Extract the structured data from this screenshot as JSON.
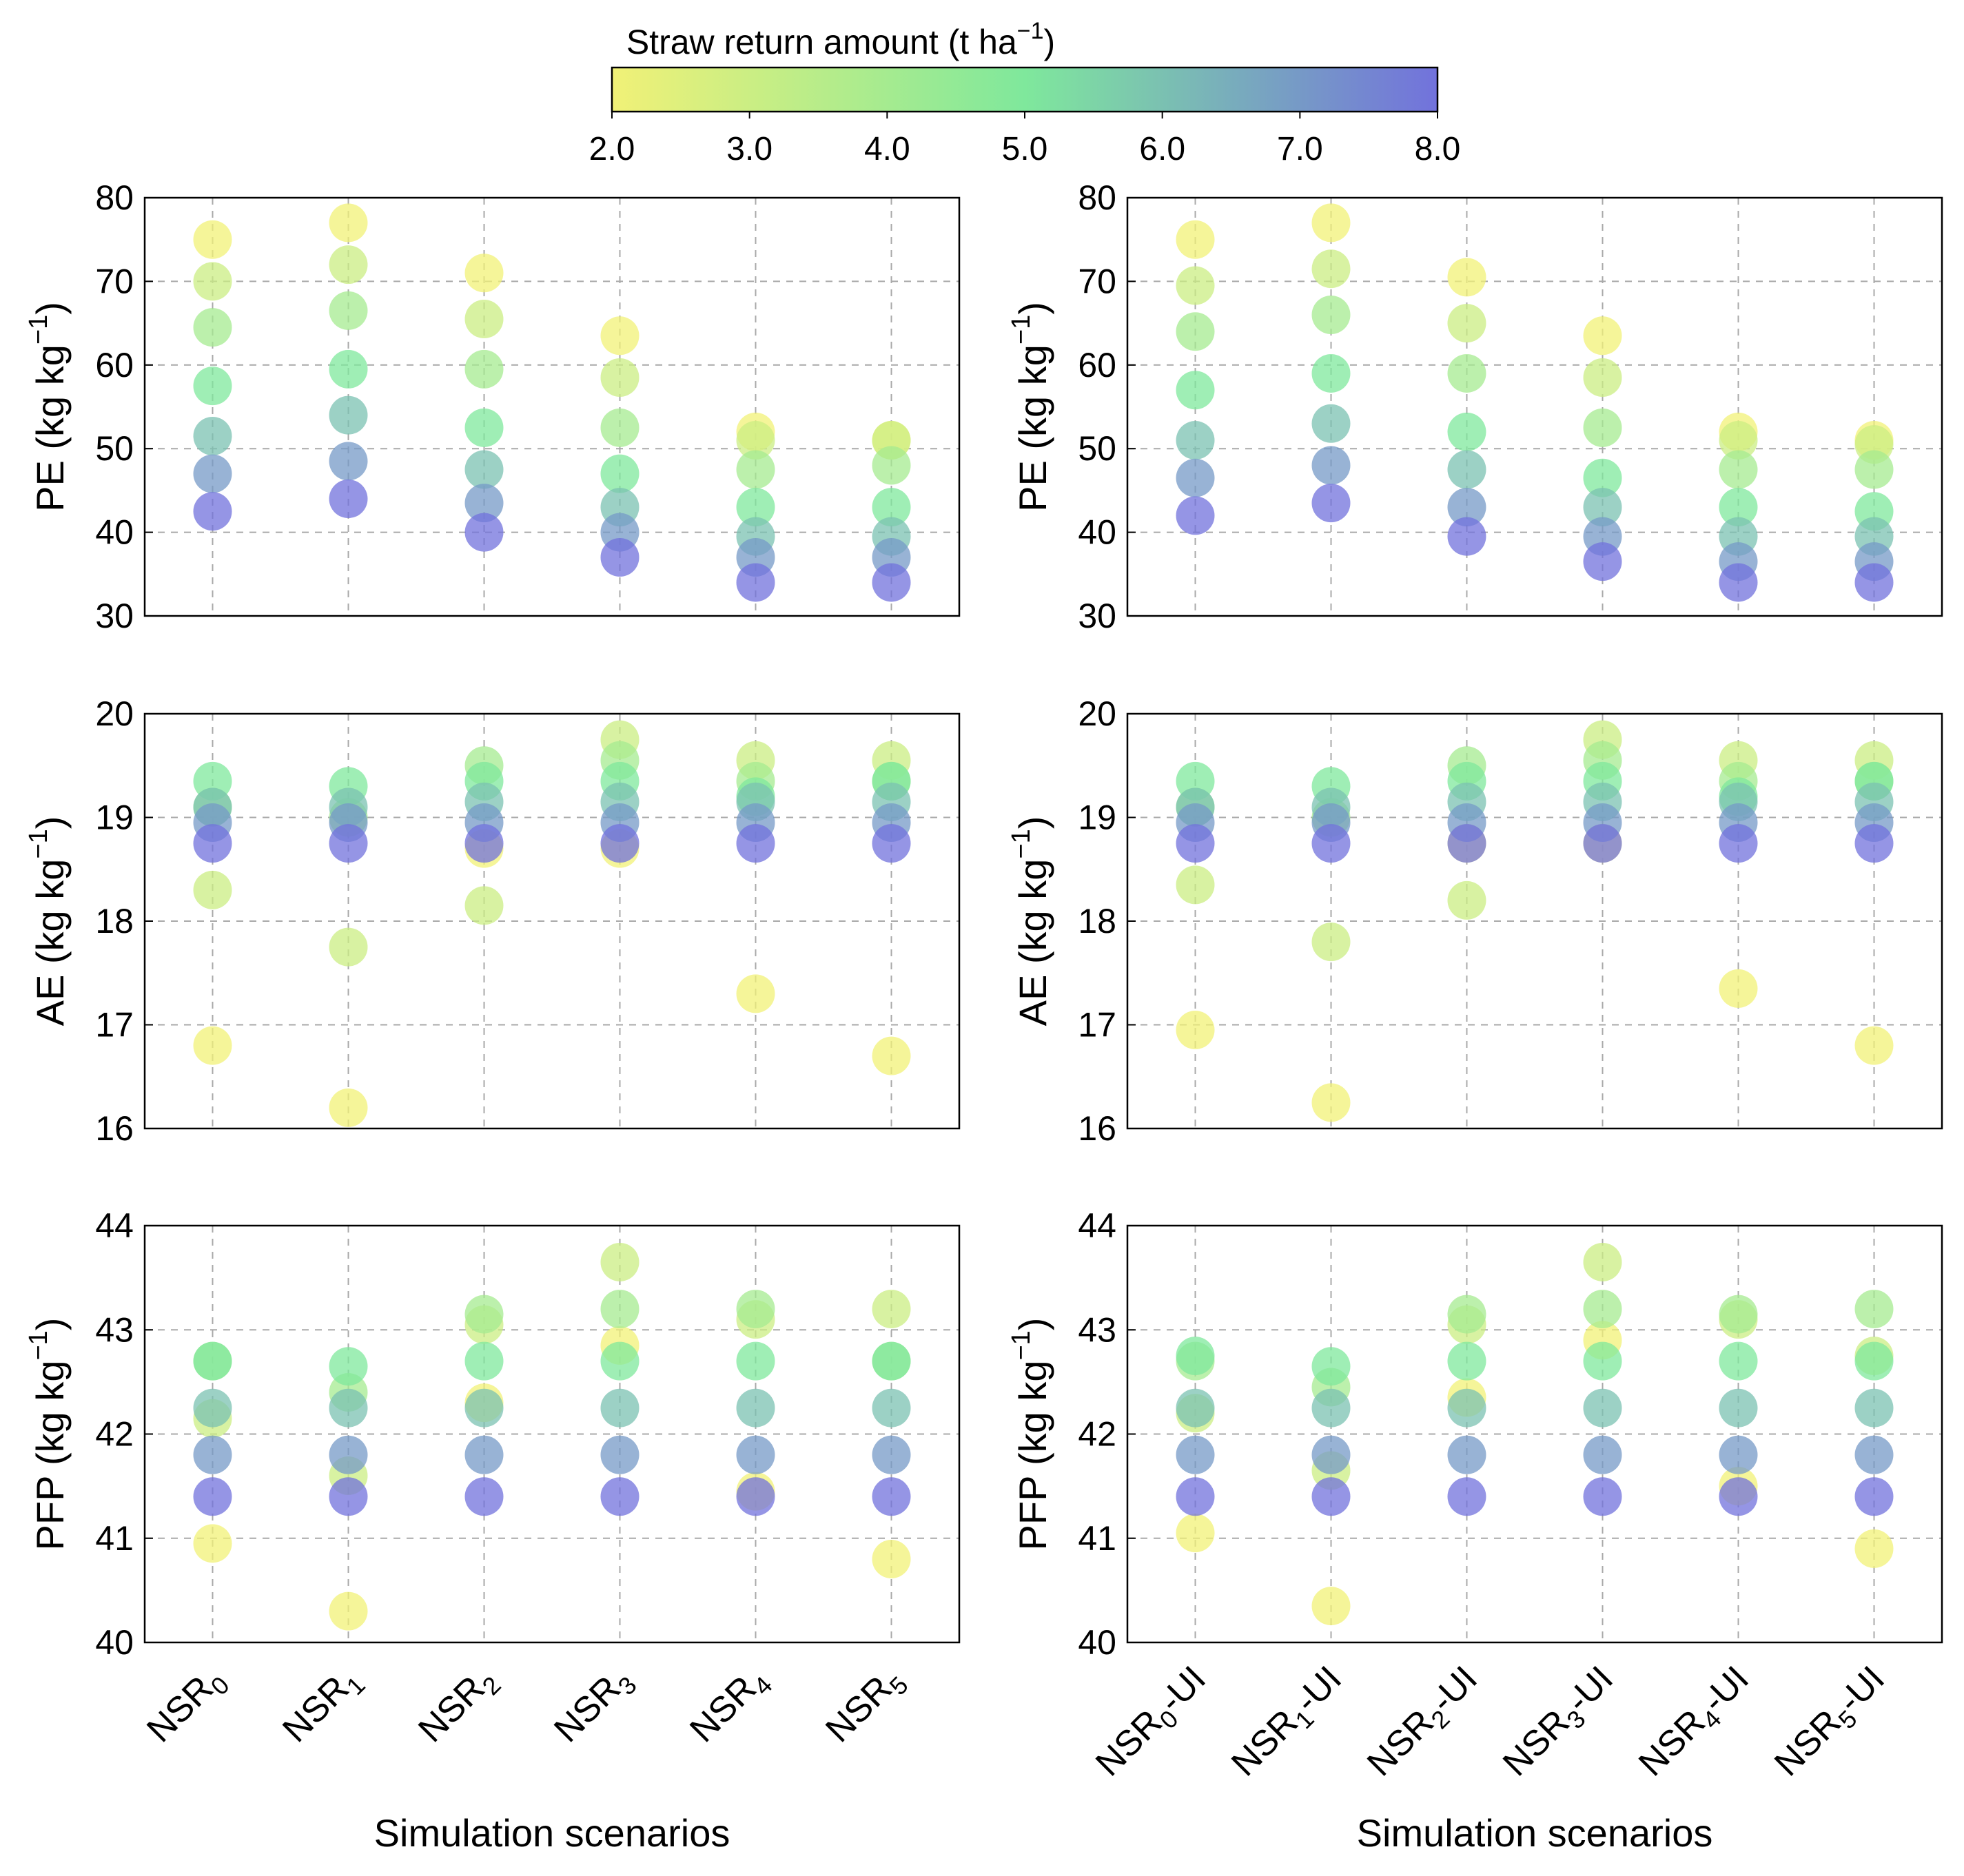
{
  "colorbar": {
    "title_main": "Straw return amount (t ha",
    "title_sup": "−1",
    "title_end": ")",
    "min": 2.0,
    "max": 8.0,
    "ticks": [
      "2.0",
      "3.0",
      "4.0",
      "5.0",
      "6.0",
      "7.0",
      "8.0"
    ],
    "colors": [
      "#f1f177",
      "#7fe89c",
      "#7272dc"
    ]
  },
  "point_alpha": 0.75,
  "chart_data": [
    {
      "id": "pe-left",
      "type": "scatter",
      "ylim": [
        30,
        80
      ],
      "yticks": [
        30,
        40,
        50,
        60,
        70,
        80
      ],
      "ylabel": {
        "main": "PE (kg kg",
        "sup": "−1",
        "end": ")"
      },
      "categories": [
        "0",
        "1",
        "2",
        "3",
        "4",
        "5"
      ],
      "category_prefix": "NSR",
      "category_suffix": "",
      "xlabel": "",
      "series": [
        {
          "straw": 2.0,
          "values": [
            75,
            77,
            71,
            63.5,
            52,
            51
          ]
        },
        {
          "straw": 3.0,
          "values": [
            70,
            72,
            65.5,
            58.5,
            51,
            51
          ]
        },
        {
          "straw": 4.0,
          "values": [
            64.5,
            66.5,
            59.5,
            52.5,
            47.5,
            48
          ]
        },
        {
          "straw": 5.0,
          "values": [
            57.5,
            59.5,
            52.5,
            47,
            43,
            43
          ]
        },
        {
          "straw": 6.0,
          "values": [
            51.5,
            54,
            47.5,
            43,
            39.5,
            39.5
          ]
        },
        {
          "straw": 7.0,
          "values": [
            47,
            48.5,
            43.5,
            40,
            37,
            37
          ]
        },
        {
          "straw": 8.0,
          "values": [
            42.5,
            44,
            40,
            37,
            34,
            34
          ]
        }
      ]
    },
    {
      "id": "pe-right",
      "type": "scatter",
      "ylim": [
        30,
        80
      ],
      "yticks": [
        30,
        40,
        50,
        60,
        70,
        80
      ],
      "ylabel": {
        "main": "PE (kg kg",
        "sup": "−1",
        "end": ")"
      },
      "categories": [
        "0",
        "1",
        "2",
        "3",
        "4",
        "5"
      ],
      "category_prefix": "NSR",
      "category_suffix": "-UI",
      "xlabel": "",
      "series": [
        {
          "straw": 2.0,
          "values": [
            75,
            77,
            70.5,
            63.5,
            52,
            51
          ]
        },
        {
          "straw": 3.0,
          "values": [
            69.5,
            71.5,
            65,
            58.5,
            51,
            50.5
          ]
        },
        {
          "straw": 4.0,
          "values": [
            64,
            66,
            59,
            52.5,
            47.5,
            47.5
          ]
        },
        {
          "straw": 5.0,
          "values": [
            57,
            59,
            52,
            46.5,
            43,
            42.5
          ]
        },
        {
          "straw": 6.0,
          "values": [
            51,
            53,
            47.5,
            43,
            39.5,
            39.5
          ]
        },
        {
          "straw": 7.0,
          "values": [
            46.5,
            48,
            43,
            39.5,
            36.5,
            36.5
          ]
        },
        {
          "straw": 8.0,
          "values": [
            42,
            43.5,
            39.5,
            36.5,
            34,
            34
          ]
        }
      ]
    },
    {
      "id": "ae-left",
      "type": "scatter",
      "ylim": [
        16,
        20
      ],
      "yticks": [
        16,
        17,
        18,
        19,
        20
      ],
      "ylabel": {
        "main": "AE (kg kg",
        "sup": "−1",
        "end": ")"
      },
      "categories": [
        "0",
        "1",
        "2",
        "3",
        "4",
        "5"
      ],
      "category_prefix": "NSR",
      "category_suffix": "",
      "xlabel": "",
      "series": [
        {
          "straw": 2.0,
          "values": [
            16.8,
            16.2,
            18.7,
            18.7,
            17.3,
            16.7
          ]
        },
        {
          "straw": 3.0,
          "values": [
            18.3,
            17.75,
            18.15,
            19.75,
            19.55,
            19.55
          ]
        },
        {
          "straw": 4.0,
          "values": [
            19.1,
            19.0,
            19.5,
            19.55,
            19.35,
            19.35
          ]
        },
        {
          "straw": 5.0,
          "values": [
            19.35,
            19.3,
            19.35,
            19.35,
            19.2,
            19.35
          ]
        },
        {
          "straw": 6.0,
          "values": [
            19.1,
            19.1,
            19.15,
            19.15,
            19.15,
            19.15
          ]
        },
        {
          "straw": 7.0,
          "values": [
            18.95,
            18.95,
            18.95,
            18.95,
            18.95,
            18.95
          ]
        },
        {
          "straw": 8.0,
          "values": [
            18.75,
            18.75,
            18.75,
            18.75,
            18.75,
            18.75
          ]
        }
      ]
    },
    {
      "id": "ae-right",
      "type": "scatter",
      "ylim": [
        16,
        20
      ],
      "yticks": [
        16,
        17,
        18,
        19,
        20
      ],
      "ylabel": {
        "main": "AE (kg kg",
        "sup": "−1",
        "end": ")"
      },
      "categories": [
        "0",
        "1",
        "2",
        "3",
        "4",
        "5"
      ],
      "category_prefix": "NSR",
      "category_suffix": "-UI",
      "xlabel": "",
      "series": [
        {
          "straw": 2.0,
          "values": [
            16.95,
            16.25,
            18.75,
            18.75,
            17.35,
            16.8
          ]
        },
        {
          "straw": 3.0,
          "values": [
            18.35,
            17.8,
            18.2,
            19.75,
            19.55,
            19.55
          ]
        },
        {
          "straw": 4.0,
          "values": [
            19.1,
            19.0,
            19.5,
            19.55,
            19.35,
            19.35
          ]
        },
        {
          "straw": 5.0,
          "values": [
            19.35,
            19.3,
            19.35,
            19.35,
            19.2,
            19.35
          ]
        },
        {
          "straw": 6.0,
          "values": [
            19.1,
            19.1,
            19.15,
            19.15,
            19.15,
            19.15
          ]
        },
        {
          "straw": 7.0,
          "values": [
            18.95,
            18.95,
            18.95,
            18.95,
            18.95,
            18.95
          ]
        },
        {
          "straw": 8.0,
          "values": [
            18.75,
            18.75,
            18.75,
            18.75,
            18.75,
            18.75
          ]
        }
      ]
    },
    {
      "id": "pfp-left",
      "type": "scatter",
      "ylim": [
        40,
        44
      ],
      "yticks": [
        40,
        41,
        42,
        43,
        44
      ],
      "ylabel": {
        "main": "PFP (kg kg",
        "sup": "−1",
        "end": ")"
      },
      "categories": [
        "0",
        "1",
        "2",
        "3",
        "4",
        "5"
      ],
      "category_prefix": "NSR",
      "category_suffix": "",
      "xlabel": "Simulation scenarios",
      "series": [
        {
          "straw": 2.0,
          "values": [
            40.95,
            40.3,
            42.3,
            42.85,
            41.45,
            40.8
          ]
        },
        {
          "straw": 3.0,
          "values": [
            42.15,
            41.6,
            43.05,
            43.65,
            43.1,
            43.2
          ]
        },
        {
          "straw": 4.0,
          "values": [
            42.7,
            42.4,
            43.15,
            43.2,
            43.2,
            42.7
          ]
        },
        {
          "straw": 5.0,
          "values": [
            42.7,
            42.65,
            42.7,
            42.7,
            42.7,
            42.7
          ]
        },
        {
          "straw": 6.0,
          "values": [
            42.25,
            42.25,
            42.25,
            42.25,
            42.25,
            42.25
          ]
        },
        {
          "straw": 7.0,
          "values": [
            41.8,
            41.8,
            41.8,
            41.8,
            41.8,
            41.8
          ]
        },
        {
          "straw": 8.0,
          "values": [
            41.4,
            41.4,
            41.4,
            41.4,
            41.4,
            41.4
          ]
        }
      ]
    },
    {
      "id": "pfp-right",
      "type": "scatter",
      "ylim": [
        40,
        44
      ],
      "yticks": [
        40,
        41,
        42,
        43,
        44
      ],
      "ylabel": {
        "main": "PFP (kg kg",
        "sup": "−1",
        "end": ")"
      },
      "categories": [
        "0",
        "1",
        "2",
        "3",
        "4",
        "5"
      ],
      "category_prefix": "NSR",
      "category_suffix": "-UI",
      "xlabel": "Simulation scenarios",
      "series": [
        {
          "straw": 2.0,
          "values": [
            41.05,
            40.35,
            42.35,
            42.9,
            41.5,
            40.9
          ]
        },
        {
          "straw": 3.0,
          "values": [
            42.2,
            41.65,
            43.05,
            43.65,
            43.1,
            42.75
          ]
        },
        {
          "straw": 4.0,
          "values": [
            42.7,
            42.45,
            43.15,
            43.2,
            43.15,
            43.2
          ]
        },
        {
          "straw": 5.0,
          "values": [
            42.75,
            42.65,
            42.7,
            42.7,
            42.7,
            42.7
          ]
        },
        {
          "straw": 6.0,
          "values": [
            42.25,
            42.25,
            42.25,
            42.25,
            42.25,
            42.25
          ]
        },
        {
          "straw": 7.0,
          "values": [
            41.8,
            41.8,
            41.8,
            41.8,
            41.8,
            41.8
          ]
        },
        {
          "straw": 8.0,
          "values": [
            41.4,
            41.4,
            41.4,
            41.4,
            41.4,
            41.4
          ]
        }
      ]
    }
  ]
}
